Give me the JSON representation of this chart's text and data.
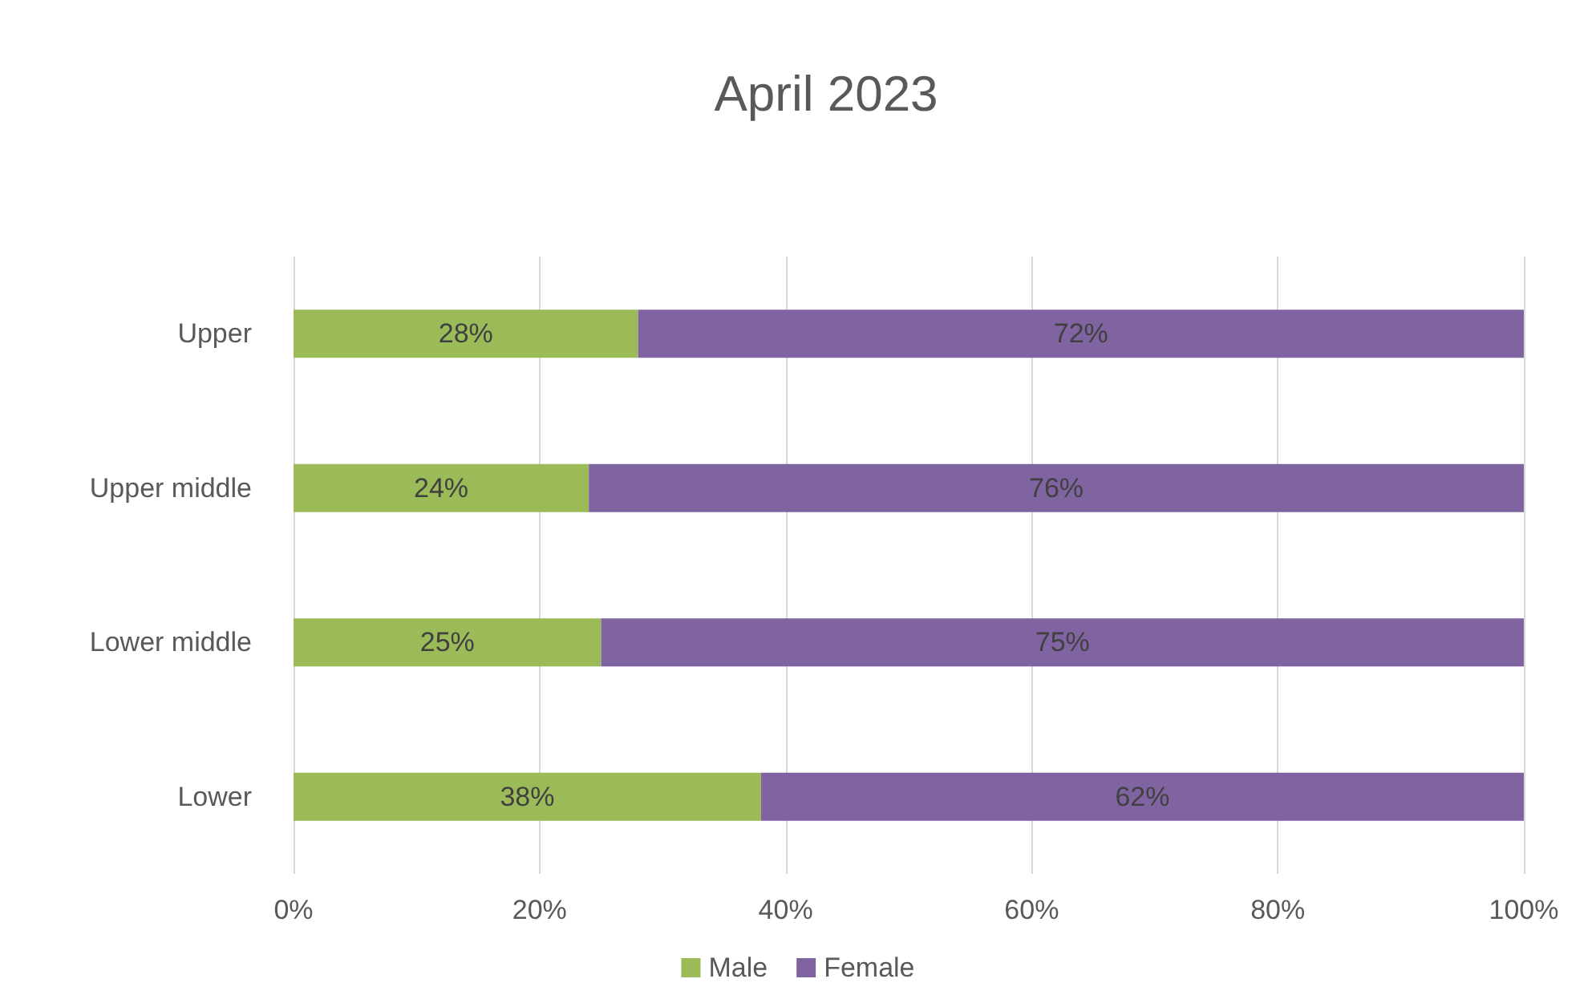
{
  "chart_data": {
    "type": "bar",
    "title": "April 2023",
    "orientation": "horizontal",
    "stacked": true,
    "categories": [
      "Upper",
      "Upper middle",
      "Lower middle",
      "Lower"
    ],
    "series": [
      {
        "name": "Male",
        "color": "#9bbb59",
        "values": [
          28,
          24,
          25,
          38
        ],
        "value_labels": [
          "28%",
          "24%",
          "25%",
          "38%"
        ]
      },
      {
        "name": "Female",
        "color": "#8064a2",
        "values": [
          72,
          76,
          75,
          62
        ],
        "value_labels": [
          "72%",
          "76%",
          "75%",
          "62%"
        ]
      }
    ],
    "xlim": [
      0,
      100
    ],
    "xticks": [
      {
        "value": 0,
        "label": "0%"
      },
      {
        "value": 20,
        "label": "20%"
      },
      {
        "value": 40,
        "label": "40%"
      },
      {
        "value": 60,
        "label": "60%"
      },
      {
        "value": 80,
        "label": "80%"
      },
      {
        "value": 100,
        "label": "100%"
      }
    ],
    "grid": "x",
    "legend": "bottom"
  }
}
